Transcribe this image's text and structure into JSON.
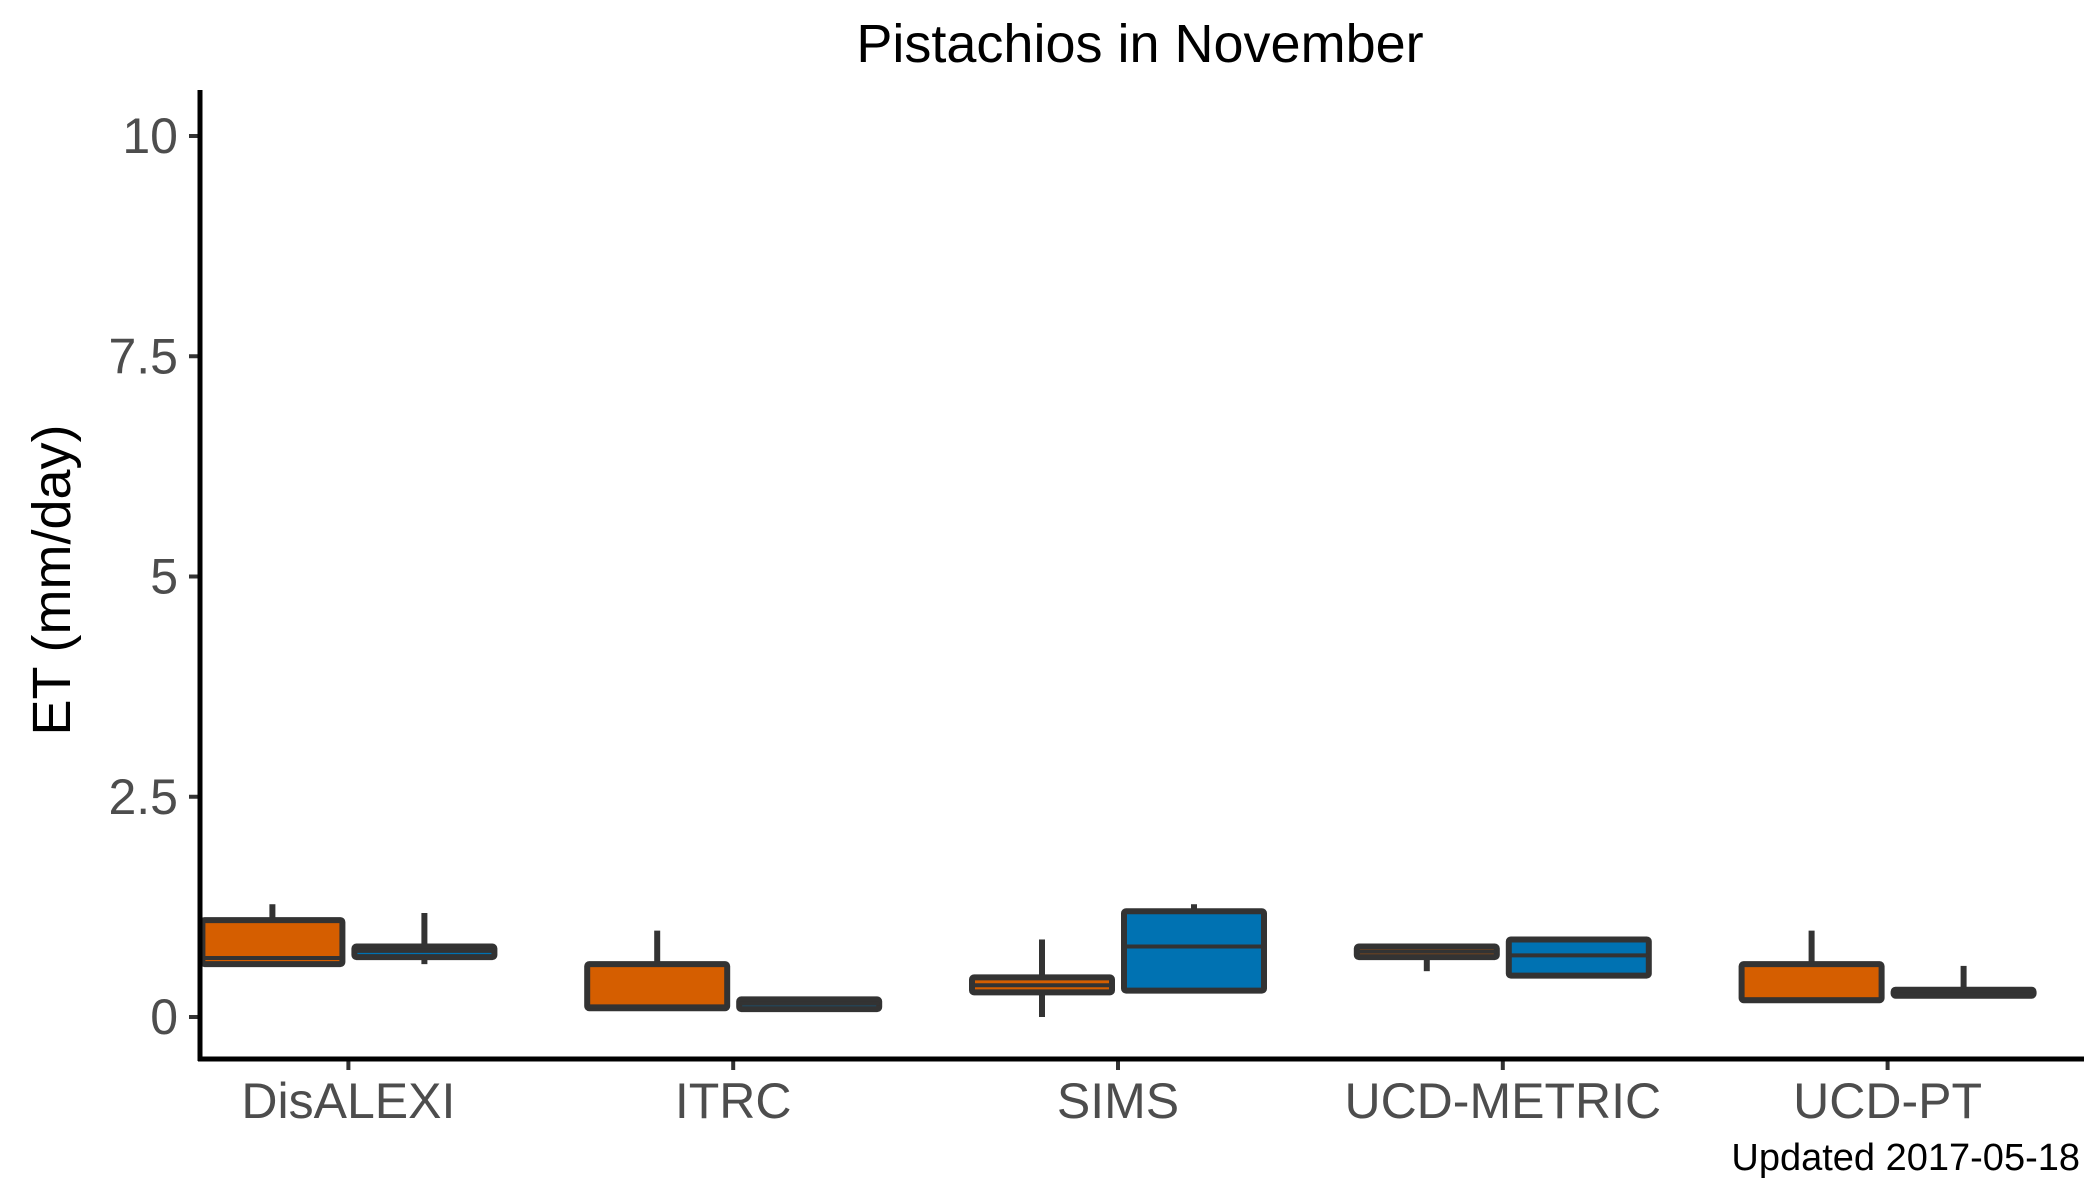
{
  "chart_data": {
    "type": "boxplot",
    "title": "Pistachios in November",
    "xlabel": "",
    "ylabel": "ET (mm/day)",
    "ylim": [
      -0.5,
      10.5
    ],
    "yticks": [
      0,
      2.5,
      5,
      7.5,
      10
    ],
    "ytick_labels": [
      "0",
      "2.5",
      "5",
      "7.5",
      "10"
    ],
    "categories": [
      "DisALEXI",
      "ITRC",
      "SIMS",
      "UCD-METRIC",
      "UCD-PT"
    ],
    "grid": false,
    "legend": "none",
    "caption": "Updated  2017-05-18",
    "series": [
      {
        "color": "#d55e00",
        "boxes": [
          {
            "whisker_low": 0.6,
            "q1": 0.6,
            "median": 0.67,
            "q3": 1.1,
            "whisker_high": 1.28
          },
          {
            "whisker_low": 0.1,
            "q1": 0.1,
            "median": 0.12,
            "q3": 0.6,
            "whisker_high": 0.98
          },
          {
            "whisker_low": 0.0,
            "q1": 0.28,
            "median": 0.36,
            "q3": 0.45,
            "whisker_high": 0.88
          },
          {
            "whisker_low": 0.52,
            "q1": 0.68,
            "median": 0.74,
            "q3": 0.8,
            "whisker_high": 0.8
          },
          {
            "whisker_low": 0.19,
            "q1": 0.19,
            "median": 0.2,
            "q3": 0.6,
            "whisker_high": 0.98
          }
        ]
      },
      {
        "color": "#0072b2",
        "boxes": [
          {
            "whisker_low": 0.6,
            "q1": 0.68,
            "median": 0.75,
            "q3": 0.8,
            "whisker_high": 1.18
          },
          {
            "whisker_low": 0.09,
            "q1": 0.09,
            "median": 0.15,
            "q3": 0.2,
            "whisker_high": 0.2
          },
          {
            "whisker_low": 0.3,
            "q1": 0.3,
            "median": 0.8,
            "q3": 1.2,
            "whisker_high": 1.28
          },
          {
            "whisker_low": 0.47,
            "q1": 0.47,
            "median": 0.7,
            "q3": 0.88,
            "whisker_high": 0.88
          },
          {
            "whisker_low": 0.29,
            "q1": 0.29,
            "median": 0.3,
            "q3": 0.31,
            "whisker_high": 0.58
          }
        ]
      }
    ]
  }
}
